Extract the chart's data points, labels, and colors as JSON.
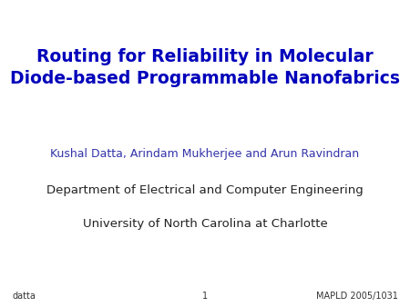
{
  "title_line1": "Routing for Reliability in Molecular",
  "title_line2": "Diode-based Programmable Nanofabrics",
  "title_color": "#0000BB",
  "author_line": "Kushal Datta, Arindam Mukherjee and Arun Ravindran",
  "author_color": "#3333AA",
  "dept_line": "Department of Electrical and Computer Engineering",
  "dept_color": "#222222",
  "univ_line": "University of North Carolina at Charlotte",
  "univ_color": "#222222",
  "footer_left": "datta",
  "footer_center": "1",
  "footer_right": "MAPLD 2005/1031",
  "footer_color": "#333333",
  "background_color": "#ffffff",
  "title_fontsize": 13.5,
  "author_fontsize": 9.0,
  "body_fontsize": 9.5,
  "footer_fontsize": 7.0
}
